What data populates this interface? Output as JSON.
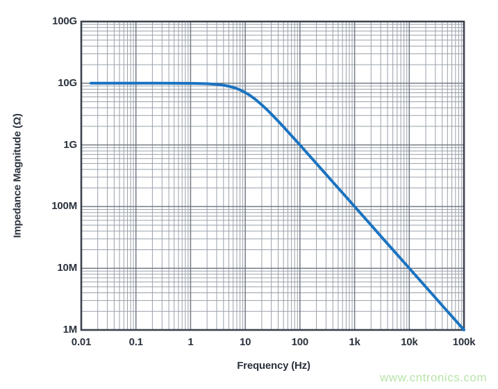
{
  "chart_data": {
    "type": "line",
    "title": "",
    "xlabel": "Frequency (Hz)",
    "ylabel": "Impedance Magnitude (Ω)",
    "x_scale": "log",
    "y_scale": "log",
    "xlim": [
      0.01,
      100000
    ],
    "ylim": [
      1000000,
      100000000000
    ],
    "grid": "log major and minor gridlines, both axes",
    "legend": null,
    "x_ticks": [
      {
        "value": 0.01,
        "label": "0.01"
      },
      {
        "value": 0.1,
        "label": "0.1"
      },
      {
        "value": 1,
        "label": "1"
      },
      {
        "value": 10,
        "label": "10"
      },
      {
        "value": 100,
        "label": "100"
      },
      {
        "value": 1000,
        "label": "1k"
      },
      {
        "value": 10000,
        "label": "10k"
      },
      {
        "value": 100000,
        "label": "100k"
      }
    ],
    "y_ticks": [
      {
        "value": 1000000,
        "label": "1M"
      },
      {
        "value": 10000000,
        "label": "10M"
      },
      {
        "value": 100000000,
        "label": "100M"
      },
      {
        "value": 1000000000,
        "label": "1G"
      },
      {
        "value": 10000000000,
        "label": "10G"
      },
      {
        "value": 100000000000,
        "label": "100G"
      }
    ],
    "series": [
      {
        "name": "impedance-magnitude",
        "color": "#1b73c1",
        "line_width": 4,
        "description": "Flat 10 GΩ plateau with single-pole roll-off, corner frequency ≈ 10 Hz, falling −1 decade/decade to 1 MΩ at 100 kHz",
        "plateau_ohms": 10000000000.0,
        "corner_hz": 10,
        "points": [
          [
            0.015,
            10000000000.0
          ],
          [
            0.03,
            10000000000.0
          ],
          [
            0.1,
            10000000000.0
          ],
          [
            0.3,
            10000000000.0
          ],
          [
            0.6,
            9980000000.0
          ],
          [
            1,
            9950000000.0
          ],
          [
            1.5,
            9890000000.0
          ],
          [
            2,
            9810000000.0
          ],
          [
            3,
            9580000000.0
          ],
          [
            4,
            9280000000.0
          ],
          [
            5,
            8940000000.0
          ],
          [
            6,
            8570000000.0
          ],
          [
            7,
            8190000000.0
          ],
          [
            8,
            7810000000.0
          ],
          [
            10,
            7070000000.0
          ],
          [
            12,
            6400000000.0
          ],
          [
            15,
            5550000000.0
          ],
          [
            20,
            4470000000.0
          ],
          [
            25,
            3710000000.0
          ],
          [
            30,
            3160000000.0
          ],
          [
            40,
            2430000000.0
          ],
          [
            50,
            1960000000.0
          ],
          [
            70,
            1410000000.0
          ],
          [
            100,
            995000000.0
          ],
          [
            150,
            666000000.0
          ],
          [
            200,
            499000000.0
          ],
          [
            300,
            333000000.0
          ],
          [
            500,
            200000000.0
          ],
          [
            700,
            143000000.0
          ],
          [
            1000,
            100000000.0
          ],
          [
            2000,
            50000000.0
          ],
          [
            3000,
            33300000.0
          ],
          [
            5000,
            20000000.0
          ],
          [
            7000,
            14300000.0
          ],
          [
            10000,
            10000000.0
          ],
          [
            20000,
            5000000.0
          ],
          [
            30000,
            3330000.0
          ],
          [
            50000,
            2000000.0
          ],
          [
            70000,
            1430000.0
          ],
          [
            100000,
            1000000.0
          ]
        ]
      }
    ]
  },
  "style": {
    "background": "#ffffff",
    "axis_border_color": "#3c424d",
    "major_grid_color": "#747b86",
    "minor_grid_color": "#99a0aa",
    "text_color": "#2b323d"
  },
  "watermark": {
    "text": "www.cntronics.com",
    "color": "#b7e3a8"
  }
}
